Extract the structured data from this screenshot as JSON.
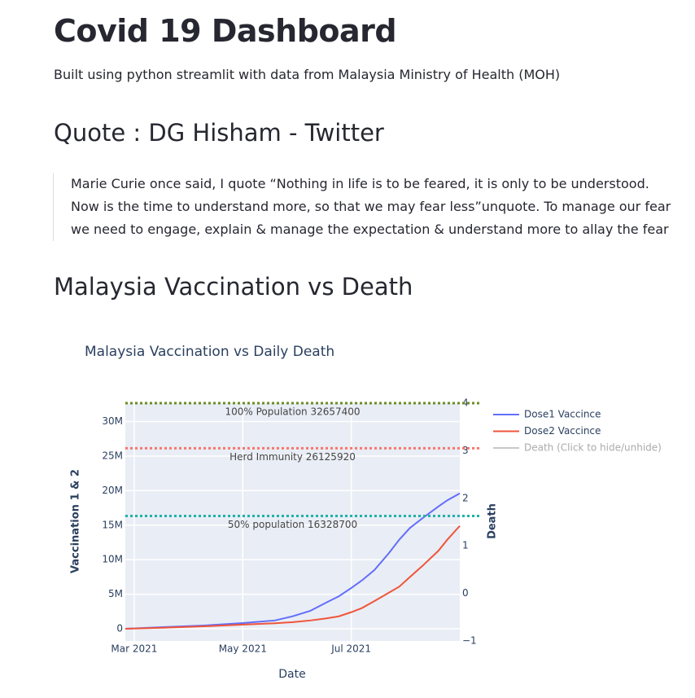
{
  "header": {
    "title": "Covid 19 Dashboard",
    "subtitle": "Built using python streamlit with data from Malaysia Ministry of Health (MOH)"
  },
  "quote": {
    "heading": "Quote : DG Hisham - Twitter",
    "text": "Marie Curie once said, I quote “Nothing in life is to be feared, it is only to be understood. Now is the time to understand more, so that we may fear less”unquote. To manage our fear we need to engage, explain & manage the expectation & understand more to allay the fear"
  },
  "section": {
    "heading": "Malaysia Vaccination vs Death"
  },
  "chart_data": {
    "type": "line",
    "title": "Malaysia Vaccination vs Daily Death",
    "x_label": "Date",
    "y_label": "Vaccination 1 & 2",
    "y2_label": "Death",
    "x": [
      "2021-02-24",
      "2021-03-17",
      "2021-04-09",
      "2021-05-01",
      "2021-05-19",
      "2021-05-29",
      "2021-06-08",
      "2021-06-17",
      "2021-06-24",
      "2021-07-01",
      "2021-07-07",
      "2021-07-14",
      "2021-07-22",
      "2021-07-28",
      "2021-08-03",
      "2021-08-10",
      "2021-08-19",
      "2021-08-24",
      "2021-08-31"
    ],
    "series": [
      {
        "name": "Dose1 Vaccince",
        "color": "#636efa",
        "values": [
          0,
          240000,
          470000,
          830000,
          1200000,
          1800000,
          2600000,
          3800000,
          4700000,
          5900000,
          7000000,
          8500000,
          10900000,
          12900000,
          14600000,
          16000000,
          17700000,
          18600000,
          19600000
        ]
      },
      {
        "name": "Dose2 Vaccince",
        "color": "#ef553b",
        "values": [
          0,
          150000,
          350000,
          600000,
          800000,
          950000,
          1200000,
          1500000,
          1800000,
          2400000,
          3000000,
          4000000,
          5200000,
          6100000,
          7500000,
          9100000,
          11300000,
          12900000,
          14900000
        ]
      },
      {
        "name": "Death (Click to hide/unhide)",
        "color": "#c8c8c8",
        "axis": "y2",
        "visible": false,
        "values": [
          null,
          null,
          null,
          null,
          null,
          null,
          null,
          null,
          null,
          null,
          null,
          null,
          null,
          null,
          null,
          null,
          null,
          null,
          null
        ]
      }
    ],
    "reference_lines": [
      {
        "value": 32657400,
        "label": "100% Population 32657400",
        "color": "#6b8e23"
      },
      {
        "value": 26125920,
        "label": "Herd Immunity 26125920",
        "color": "#f8776d"
      },
      {
        "value": 16328700,
        "label": "50% population 16328700",
        "color": "#1fb3a8"
      }
    ],
    "xlim": [
      "2021-02-24",
      "2021-08-31"
    ],
    "xticks": [
      {
        "value": "2021-03-01",
        "label": "Mar 2021"
      },
      {
        "value": "2021-05-01",
        "label": "May 2021"
      },
      {
        "value": "2021-07-01",
        "label": "Jul 2021"
      }
    ],
    "ylim": [
      -1770000,
      32657400
    ],
    "yticks": [
      0,
      {
        "value": 5000000,
        "label": "5M"
      },
      {
        "value": 10000000,
        "label": "10M"
      },
      {
        "value": 15000000,
        "label": "15M"
      },
      {
        "value": 20000000,
        "label": "20M"
      },
      {
        "value": 25000000,
        "label": "25M"
      },
      {
        "value": 30000000,
        "label": "30M"
      }
    ],
    "y2lim": [
      -1,
      4
    ],
    "y2ticks": [
      {
        "value": -1,
        "label": "−1"
      },
      0,
      1,
      2,
      3,
      4
    ],
    "grid": true
  }
}
